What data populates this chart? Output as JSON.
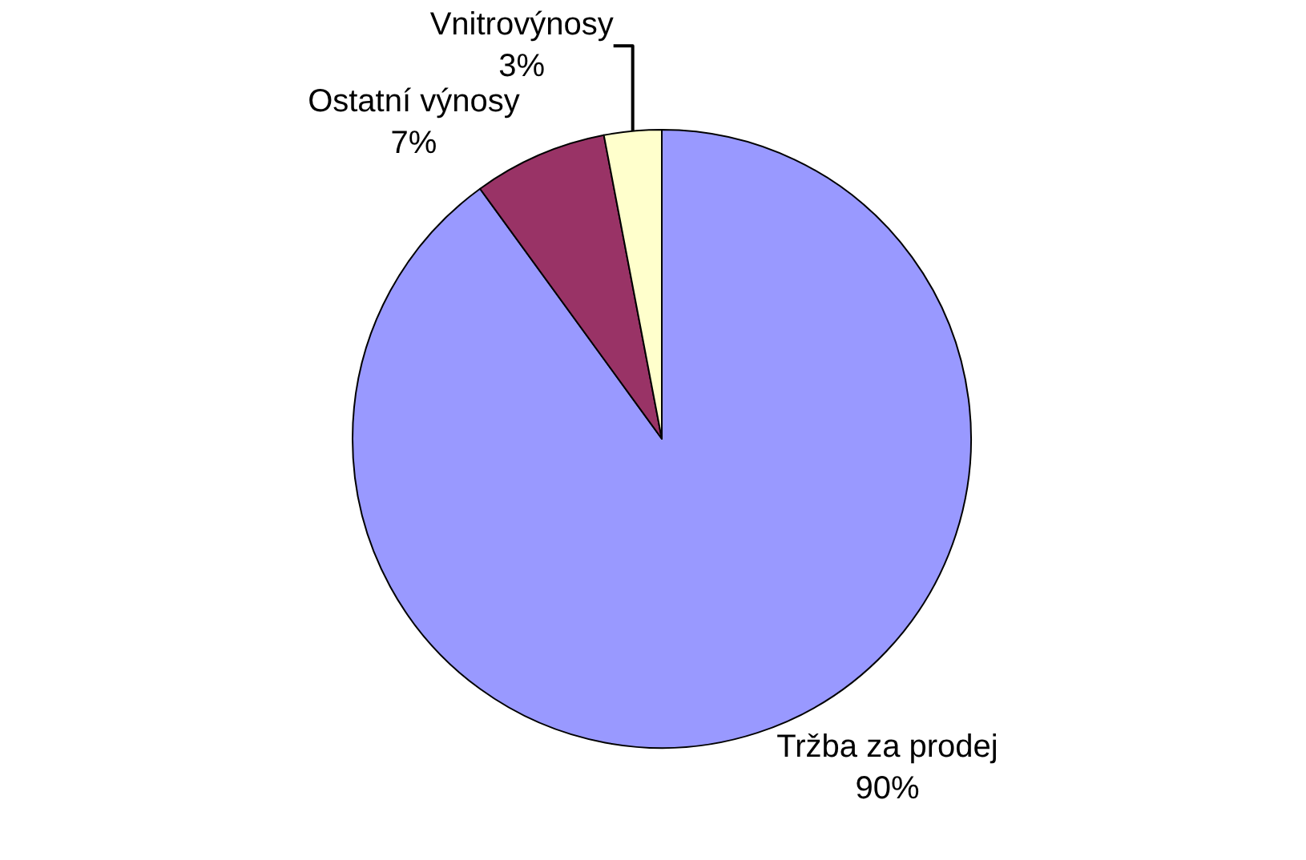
{
  "chart_data": {
    "type": "pie",
    "categories": [
      "Tržba za prodej",
      "Ostatní výnosy",
      "Vnitrovýnosy"
    ],
    "values": [
      90,
      7,
      3
    ],
    "value_labels": [
      "90%",
      "7%",
      "3%"
    ],
    "colors": [
      "#9999ff",
      "#993366",
      "#ffffcc"
    ],
    "legend": false
  }
}
